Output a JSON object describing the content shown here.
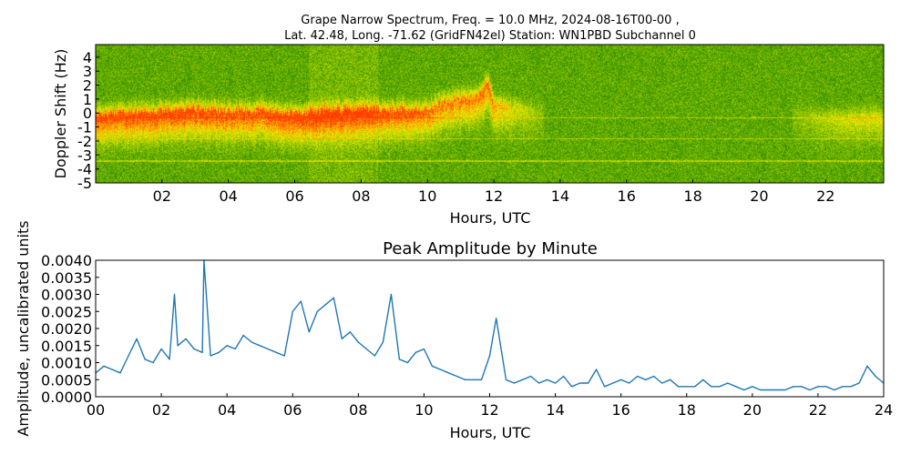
{
  "chart_data": [
    {
      "type": "heatmap",
      "title_line1": "Grape Narrow Spectrum, Freq. = 10.0 MHz, 2024-08-16T00-00 ,",
      "title_line2": "Lat.  42.48, Long. -71.62 (GridFN42el) Station: WN1PBD Subchannel 0",
      "xlabel": "Hours, UTC",
      "ylabel": "Doppler Shift (Hz)",
      "xlim": [
        0,
        23.75
      ],
      "ylim": [
        -5,
        4.9
      ],
      "xticks": [
        "02",
        "04",
        "06",
        "08",
        "10",
        "12",
        "14",
        "16",
        "18",
        "20",
        "22"
      ],
      "xtick_values": [
        2,
        4,
        6,
        8,
        10,
        12,
        14,
        16,
        18,
        20,
        22
      ],
      "yticks": [
        "4",
        "3",
        "2",
        "1",
        "0",
        "-1",
        "-2",
        "-3",
        "-4",
        "-5"
      ],
      "ytick_values": [
        4,
        3,
        2,
        1,
        0,
        -1,
        -2,
        -3,
        -4,
        -5
      ],
      "colormap": [
        "#1e7a00",
        "#4a9e00",
        "#c8dc00",
        "#f0f000",
        "#ff9a00",
        "#ff3a00"
      ],
      "signal_ridge": {
        "hours": [
          0,
          1,
          2,
          3,
          4,
          5,
          6,
          7,
          8,
          9,
          10,
          10.5,
          11,
          11.5,
          11.8,
          12,
          12.5,
          13,
          13.5,
          21,
          22,
          23,
          23.75
        ],
        "doppler": [
          -0.4,
          -0.2,
          -0.1,
          0.1,
          -0.1,
          0.0,
          -0.3,
          -0.1,
          0.0,
          0.0,
          0.1,
          0.6,
          0.9,
          1.0,
          2.0,
          0.5,
          0.3,
          0.1,
          0.0,
          -0.3,
          -0.4,
          -0.3,
          -0.3
        ],
        "strength": [
          0.85,
          0.9,
          0.9,
          0.9,
          0.85,
          0.85,
          0.95,
          0.95,
          0.9,
          0.85,
          0.75,
          0.7,
          0.7,
          0.7,
          0.75,
          0.6,
          0.4,
          0.25,
          0.1,
          0.1,
          0.25,
          0.35,
          0.35
        ]
      },
      "carrier_lines_hz": [
        -0.3,
        -1.8,
        -3.4
      ]
    },
    {
      "type": "line",
      "title": "Peak Amplitude by Minute",
      "xlabel": "Hours, UTC",
      "ylabel": "Amplitude, uncalibrated units",
      "xlim": [
        0,
        24
      ],
      "ylim": [
        0,
        0.004
      ],
      "xticks": [
        "00",
        "02",
        "04",
        "06",
        "08",
        "10",
        "12",
        "14",
        "16",
        "18",
        "20",
        "22",
        "24"
      ],
      "xtick_values": [
        0,
        2,
        4,
        6,
        8,
        10,
        12,
        14,
        16,
        18,
        20,
        22,
        24
      ],
      "yticks": [
        "0.0000",
        "0.0005",
        "0.0010",
        "0.0015",
        "0.0020",
        "0.0025",
        "0.0030",
        "0.0035",
        "0.0040"
      ],
      "ytick_values": [
        0,
        0.0005,
        0.001,
        0.0015,
        0.002,
        0.0025,
        0.003,
        0.0035,
        0.004
      ],
      "line_color": "#1f77b4",
      "x": [
        0,
        0.25,
        0.5,
        0.75,
        1,
        1.25,
        1.5,
        1.75,
        2,
        2.25,
        2.4,
        2.5,
        2.75,
        3,
        3.25,
        3.3,
        3.5,
        3.75,
        4,
        4.25,
        4.5,
        4.75,
        5,
        5.25,
        5.5,
        5.75,
        6,
        6.25,
        6.5,
        6.75,
        7,
        7.25,
        7.5,
        7.75,
        8,
        8.25,
        8.5,
        8.75,
        9,
        9.25,
        9.5,
        9.75,
        10,
        10.25,
        10.5,
        10.75,
        11,
        11.25,
        11.5,
        11.75,
        12,
        12.2,
        12.5,
        12.75,
        13,
        13.25,
        13.5,
        13.75,
        14,
        14.25,
        14.5,
        14.75,
        15,
        15.25,
        15.5,
        15.75,
        16,
        16.25,
        16.5,
        16.75,
        17,
        17.25,
        17.5,
        17.75,
        18,
        18.25,
        18.5,
        18.75,
        19,
        19.25,
        19.5,
        19.75,
        20,
        20.25,
        20.5,
        20.75,
        21,
        21.25,
        21.5,
        21.75,
        22,
        22.25,
        22.5,
        22.75,
        23,
        23.25,
        23.5,
        23.75,
        24
      ],
      "y": [
        0.0007,
        0.0009,
        0.0008,
        0.0007,
        0.0012,
        0.0017,
        0.0011,
        0.001,
        0.0014,
        0.0011,
        0.003,
        0.0015,
        0.0017,
        0.0014,
        0.0013,
        0.004,
        0.0012,
        0.0013,
        0.0015,
        0.0014,
        0.0018,
        0.0016,
        0.0015,
        0.0014,
        0.0013,
        0.0012,
        0.0025,
        0.0028,
        0.0019,
        0.0025,
        0.0027,
        0.0029,
        0.0017,
        0.0019,
        0.0016,
        0.0014,
        0.0012,
        0.0016,
        0.003,
        0.0011,
        0.001,
        0.0013,
        0.0014,
        0.0009,
        0.0008,
        0.0007,
        0.0006,
        0.0005,
        0.0005,
        0.0005,
        0.0012,
        0.0023,
        0.0005,
        0.0004,
        0.0005,
        0.0006,
        0.0004,
        0.0005,
        0.0004,
        0.0006,
        0.0003,
        0.0004,
        0.0004,
        0.0008,
        0.0003,
        0.0004,
        0.0005,
        0.0004,
        0.0006,
        0.0005,
        0.0006,
        0.0004,
        0.0005,
        0.0003,
        0.0003,
        0.0003,
        0.0005,
        0.0003,
        0.0003,
        0.0004,
        0.0003,
        0.0002,
        0.0003,
        0.0002,
        0.0002,
        0.0002,
        0.0002,
        0.0003,
        0.0003,
        0.0002,
        0.0003,
        0.0003,
        0.0002,
        0.0003,
        0.0003,
        0.0004,
        0.0009,
        0.0006,
        0.0004
      ]
    }
  ]
}
